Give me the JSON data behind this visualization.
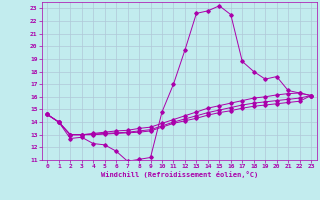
{
  "xlabel": "Windchill (Refroidissement éolien,°C)",
  "xlim": [
    -0.5,
    23.5
  ],
  "ylim": [
    11,
    23.5
  ],
  "xticks": [
    0,
    1,
    2,
    3,
    4,
    5,
    6,
    7,
    8,
    9,
    10,
    11,
    12,
    13,
    14,
    15,
    16,
    17,
    18,
    19,
    20,
    21,
    22,
    23
  ],
  "yticks": [
    11,
    12,
    13,
    14,
    15,
    16,
    17,
    18,
    19,
    20,
    21,
    22,
    23
  ],
  "bg_color": "#c2ecee",
  "grid_color": "#b0c8d8",
  "line_color": "#aa00aa",
  "curves": [
    {
      "x": [
        0,
        1,
        2,
        3,
        4,
        5,
        6,
        7,
        8,
        9,
        10,
        11,
        12,
        13,
        14,
        15,
        16,
        17,
        18,
        19,
        20,
        21,
        22,
        23
      ],
      "y": [
        14.6,
        14.0,
        12.7,
        12.8,
        12.3,
        12.2,
        11.7,
        10.9,
        11.05,
        11.2,
        14.8,
        17.0,
        19.7,
        22.6,
        22.8,
        23.2,
        22.5,
        18.8,
        18.0,
        17.4,
        17.6,
        16.5,
        16.3,
        16.1
      ]
    },
    {
      "x": [
        0,
        1,
        2,
        3,
        4,
        5,
        6,
        7,
        8,
        9,
        10,
        11,
        12,
        13,
        14,
        15,
        16,
        17,
        18,
        19,
        20,
        21,
        22,
        23
      ],
      "y": [
        14.6,
        14.0,
        13.0,
        13.0,
        13.1,
        13.2,
        13.3,
        13.35,
        13.5,
        13.6,
        13.9,
        14.2,
        14.5,
        14.8,
        15.1,
        15.3,
        15.5,
        15.7,
        15.9,
        16.0,
        16.15,
        16.25,
        16.3,
        16.1
      ]
    },
    {
      "x": [
        0,
        1,
        2,
        3,
        4,
        5,
        6,
        7,
        8,
        9,
        10,
        11,
        12,
        13,
        14,
        15,
        16,
        17,
        18,
        19,
        20,
        21,
        22,
        23
      ],
      "y": [
        14.6,
        14.0,
        13.0,
        13.0,
        13.05,
        13.1,
        13.15,
        13.2,
        13.3,
        13.4,
        13.7,
        14.0,
        14.25,
        14.5,
        14.75,
        14.95,
        15.15,
        15.35,
        15.5,
        15.6,
        15.7,
        15.8,
        15.9,
        16.1
      ]
    },
    {
      "x": [
        0,
        1,
        2,
        3,
        4,
        5,
        6,
        7,
        8,
        9,
        10,
        11,
        12,
        13,
        14,
        15,
        16,
        17,
        18,
        19,
        20,
        21,
        22,
        23
      ],
      "y": [
        14.6,
        14.0,
        13.0,
        13.0,
        13.0,
        13.05,
        13.1,
        13.15,
        13.2,
        13.3,
        13.6,
        13.9,
        14.1,
        14.3,
        14.55,
        14.75,
        14.9,
        15.1,
        15.25,
        15.35,
        15.45,
        15.55,
        15.65,
        16.1
      ]
    }
  ]
}
